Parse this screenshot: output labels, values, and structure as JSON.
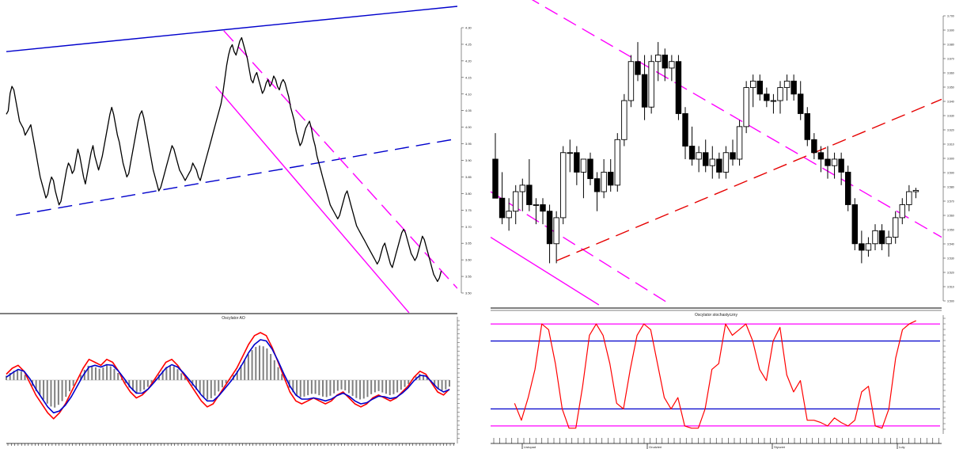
{
  "chart_data": [
    {
      "id": "left_price",
      "type": "line",
      "title": "",
      "y_ticks": [
        "4.30",
        "4.25",
        "4.20",
        "4.15",
        "4.10",
        "4.05",
        "4.00",
        "3.95",
        "3.90",
        "3.85",
        "3.80",
        "3.75",
        "3.70",
        "3.65",
        "3.60",
        "3.55",
        "3.50"
      ],
      "ylim": [
        3.45,
        4.33
      ],
      "xlim": [
        0,
        280
      ],
      "series": [
        {
          "color": "#000000",
          "values": [
            4.02,
            4.03,
            4.08,
            4.1,
            4.09,
            4.06,
            4.03,
            4.0,
            3.99,
            3.98,
            3.96,
            3.97,
            3.98,
            3.99,
            3.96,
            3.93,
            3.9,
            3.87,
            3.84,
            3.82,
            3.8,
            3.78,
            3.79,
            3.82,
            3.84,
            3.83,
            3.8,
            3.78,
            3.76,
            3.77,
            3.8,
            3.83,
            3.86,
            3.88,
            3.87,
            3.85,
            3.86,
            3.89,
            3.92,
            3.9,
            3.87,
            3.84,
            3.82,
            3.85,
            3.88,
            3.91,
            3.93,
            3.9,
            3.88,
            3.86,
            3.88,
            3.9,
            3.93,
            3.96,
            3.99,
            4.02,
            4.04,
            4.02,
            3.99,
            3.96,
            3.94,
            3.91,
            3.88,
            3.86,
            3.84,
            3.85,
            3.88,
            3.91,
            3.94,
            3.97,
            4.0,
            4.02,
            4.03,
            4.01,
            3.98,
            3.95,
            3.92,
            3.89,
            3.86,
            3.84,
            3.82,
            3.8,
            3.81,
            3.83,
            3.85,
            3.87,
            3.89,
            3.91,
            3.93,
            3.92,
            3.9,
            3.88,
            3.86,
            3.85,
            3.84,
            3.83,
            3.84,
            3.85,
            3.86,
            3.88,
            3.87,
            3.86,
            3.84,
            3.83,
            3.85,
            3.87,
            3.89,
            3.91,
            3.93,
            3.95,
            3.97,
            3.99,
            4.01,
            4.03,
            4.05,
            4.08,
            4.12,
            4.16,
            4.19,
            4.21,
            4.22,
            4.2,
            4.19,
            4.21,
            4.23,
            4.24,
            4.22,
            4.2,
            4.18,
            4.15,
            4.12,
            4.11,
            4.13,
            4.14,
            4.12,
            4.1,
            4.08,
            4.09,
            4.11,
            4.12,
            4.1,
            4.11,
            4.13,
            4.12,
            4.1,
            4.09,
            4.11,
            4.12,
            4.11,
            4.09,
            4.07,
            4.04,
            4.02,
            4.0,
            3.97,
            3.95,
            3.93,
            3.94,
            3.96,
            3.98,
            3.99,
            4.0,
            3.98,
            3.95,
            3.93,
            3.9,
            3.88,
            3.86,
            3.84,
            3.82,
            3.8,
            3.78,
            3.76,
            3.75,
            3.74,
            3.73,
            3.72,
            3.73,
            3.75,
            3.77,
            3.79,
            3.8,
            3.78,
            3.76,
            3.74,
            3.72,
            3.7,
            3.69,
            3.68,
            3.67,
            3.66,
            3.65,
            3.64,
            3.63,
            3.62,
            3.61,
            3.6,
            3.59,
            3.6,
            3.62,
            3.64,
            3.65,
            3.63,
            3.61,
            3.59,
            3.58,
            3.6,
            3.62,
            3.64,
            3.66,
            3.68,
            3.69,
            3.68,
            3.66,
            3.64,
            3.62,
            3.61,
            3.6,
            3.61,
            3.63,
            3.65,
            3.67,
            3.66,
            3.64,
            3.62,
            3.6,
            3.58,
            3.56,
            3.55,
            3.54,
            3.55,
            3.57
          ]
        }
      ],
      "trendlines": [
        {
          "color": "#0000cc",
          "style": "solid",
          "from": [
            0,
            4.2
          ],
          "to": [
            280,
            4.33
          ]
        },
        {
          "color": "#0000cc",
          "style": "dashed",
          "from": [
            6,
            3.73
          ],
          "to": [
            280,
            3.95
          ]
        },
        {
          "color": "#ff00ff",
          "style": "dashed",
          "from": [
            135,
            4.26
          ],
          "to": [
            280,
            3.52
          ]
        },
        {
          "color": "#ff00ff",
          "style": "solid",
          "from": [
            130,
            4.1
          ],
          "to": [
            250,
            3.45
          ]
        }
      ]
    },
    {
      "id": "left_osc",
      "type": "line",
      "title": "Oscylator AO",
      "ylim": [
        -1,
        1
      ],
      "xlim": [
        0,
        280
      ],
      "series": [
        {
          "color": "#ff0000",
          "values": [
            0.1,
            0.2,
            0.25,
            0.15,
            -0.05,
            -0.25,
            -0.4,
            -0.55,
            -0.65,
            -0.55,
            -0.4,
            -0.2,
            0.0,
            0.2,
            0.35,
            0.3,
            0.25,
            0.35,
            0.3,
            0.15,
            -0.05,
            -0.2,
            -0.3,
            -0.25,
            -0.15,
            0.0,
            0.15,
            0.3,
            0.35,
            0.25,
            0.1,
            -0.05,
            -0.2,
            -0.35,
            -0.45,
            -0.4,
            -0.25,
            -0.1,
            0.05,
            0.2,
            0.4,
            0.6,
            0.75,
            0.8,
            0.75,
            0.55,
            0.3,
            0.05,
            -0.2,
            -0.35,
            -0.4,
            -0.35,
            -0.3,
            -0.35,
            -0.4,
            -0.35,
            -0.25,
            -0.2,
            -0.3,
            -0.4,
            -0.45,
            -0.4,
            -0.3,
            -0.25,
            -0.3,
            -0.35,
            -0.3,
            -0.2,
            -0.1,
            0.05,
            0.15,
            0.1,
            -0.05,
            -0.2,
            -0.25,
            -0.15
          ]
        },
        {
          "color": "#0000cc",
          "values": [
            0.05,
            0.12,
            0.18,
            0.15,
            0.02,
            -0.15,
            -0.3,
            -0.45,
            -0.55,
            -0.52,
            -0.42,
            -0.28,
            -0.1,
            0.08,
            0.22,
            0.25,
            0.22,
            0.26,
            0.25,
            0.15,
            0.02,
            -0.12,
            -0.22,
            -0.22,
            -0.15,
            -0.04,
            0.08,
            0.2,
            0.26,
            0.22,
            0.12,
            0.0,
            -0.12,
            -0.25,
            -0.35,
            -0.35,
            -0.26,
            -0.14,
            -0.02,
            0.12,
            0.28,
            0.46,
            0.6,
            0.68,
            0.66,
            0.52,
            0.32,
            0.1,
            -0.1,
            -0.25,
            -0.32,
            -0.32,
            -0.3,
            -0.32,
            -0.35,
            -0.32,
            -0.26,
            -0.22,
            -0.27,
            -0.35,
            -0.4,
            -0.38,
            -0.32,
            -0.27,
            -0.28,
            -0.31,
            -0.29,
            -0.22,
            -0.13,
            -0.01,
            0.08,
            0.07,
            -0.03,
            -0.14,
            -0.2,
            -0.16
          ]
        }
      ]
    },
    {
      "id": "right_candles",
      "type": "candlestick",
      "title": "",
      "y_ticks": [
        "3.700",
        "3.690",
        "3.680",
        "3.670",
        "3.660",
        "3.650",
        "3.640",
        "3.630",
        "3.620",
        "3.610",
        "3.600",
        "3.590",
        "3.580",
        "3.570",
        "3.560",
        "3.550",
        "3.540",
        "3.530",
        "3.520",
        "3.510",
        "3.500"
      ],
      "ylim": [
        3.488,
        3.715
      ],
      "xlim": [
        0,
        75
      ],
      "ohlc": [
        [
          3.6,
          3.62,
          3.57,
          3.57
        ],
        [
          3.57,
          3.59,
          3.55,
          3.555
        ],
        [
          3.555,
          3.57,
          3.545,
          3.56
        ],
        [
          3.56,
          3.58,
          3.55,
          3.575
        ],
        [
          3.575,
          3.585,
          3.56,
          3.58
        ],
        [
          3.58,
          3.6,
          3.56,
          3.565
        ],
        [
          3.565,
          3.57,
          3.55,
          3.565
        ],
        [
          3.565,
          3.57,
          3.55,
          3.56
        ],
        [
          3.56,
          3.565,
          3.52,
          3.535
        ],
        [
          3.535,
          3.56,
          3.52,
          3.555
        ],
        [
          3.555,
          3.61,
          3.55,
          3.605
        ],
        [
          3.605,
          3.615,
          3.59,
          3.605
        ],
        [
          3.605,
          3.61,
          3.58,
          3.59
        ],
        [
          3.59,
          3.6,
          3.57,
          3.6
        ],
        [
          3.6,
          3.605,
          3.58,
          3.585
        ],
        [
          3.585,
          3.59,
          3.56,
          3.575
        ],
        [
          3.575,
          3.6,
          3.57,
          3.59
        ],
        [
          3.59,
          3.6,
          3.575,
          3.58
        ],
        [
          3.58,
          3.62,
          3.575,
          3.615
        ],
        [
          3.615,
          3.65,
          3.61,
          3.645
        ],
        [
          3.645,
          3.68,
          3.64,
          3.675
        ],
        [
          3.675,
          3.69,
          3.66,
          3.665
        ],
        [
          3.665,
          3.68,
          3.63,
          3.64
        ],
        [
          3.64,
          3.68,
          3.635,
          3.675
        ],
        [
          3.675,
          3.69,
          3.66,
          3.68
        ],
        [
          3.68,
          3.685,
          3.66,
          3.67
        ],
        [
          3.67,
          3.68,
          3.66,
          3.675
        ],
        [
          3.675,
          3.68,
          3.63,
          3.635
        ],
        [
          3.635,
          3.64,
          3.6,
          3.61
        ],
        [
          3.61,
          3.625,
          3.595,
          3.6
        ],
        [
          3.6,
          3.61,
          3.59,
          3.605
        ],
        [
          3.605,
          3.615,
          3.59,
          3.595
        ],
        [
          3.595,
          3.61,
          3.585,
          3.6
        ],
        [
          3.6,
          3.605,
          3.585,
          3.59
        ],
        [
          3.59,
          3.61,
          3.585,
          3.605
        ],
        [
          3.605,
          3.615,
          3.595,
          3.6
        ],
        [
          3.6,
          3.63,
          3.595,
          3.625
        ],
        [
          3.625,
          3.66,
          3.62,
          3.655
        ],
        [
          3.655,
          3.665,
          3.64,
          3.66
        ],
        [
          3.66,
          3.665,
          3.645,
          3.65
        ],
        [
          3.65,
          3.655,
          3.64,
          3.645
        ],
        [
          3.645,
          3.65,
          3.635,
          3.645
        ],
        [
          3.645,
          3.66,
          3.635,
          3.655
        ],
        [
          3.655,
          3.665,
          3.645,
          3.66
        ],
        [
          3.66,
          3.665,
          3.645,
          3.65
        ],
        [
          3.65,
          3.66,
          3.63,
          3.635
        ],
        [
          3.635,
          3.64,
          3.61,
          3.615
        ],
        [
          3.615,
          3.62,
          3.6,
          3.605
        ],
        [
          3.605,
          3.61,
          3.59,
          3.6
        ],
        [
          3.6,
          3.61,
          3.585,
          3.595
        ],
        [
          3.595,
          3.605,
          3.585,
          3.6
        ],
        [
          3.6,
          3.605,
          3.58,
          3.59
        ],
        [
          3.59,
          3.595,
          3.56,
          3.565
        ],
        [
          3.565,
          3.57,
          3.53,
          3.535
        ],
        [
          3.535,
          3.545,
          3.52,
          3.53
        ],
        [
          3.53,
          3.54,
          3.525,
          3.535
        ],
        [
          3.535,
          3.55,
          3.53,
          3.545
        ],
        [
          3.545,
          3.55,
          3.53,
          3.535
        ],
        [
          3.535,
          3.545,
          3.525,
          3.54
        ],
        [
          3.54,
          3.56,
          3.535,
          3.555
        ],
        [
          3.555,
          3.57,
          3.55,
          3.565
        ],
        [
          3.565,
          3.58,
          3.56,
          3.575
        ],
        [
          3.575,
          3.578,
          3.57,
          3.576
        ]
      ],
      "trendlines": [
        {
          "color": "#ff00ff",
          "style": "dashed",
          "from": [
            6,
            3.725
          ],
          "to": [
            75,
            3.54
          ]
        },
        {
          "color": "#ff00ff",
          "style": "solid",
          "from": [
            0,
            3.54
          ],
          "to": [
            18,
            3.488
          ]
        },
        {
          "color": "#ff00ff",
          "style": "dashed",
          "from": [
            0,
            3.575
          ],
          "to": [
            30,
            3.488
          ]
        },
        {
          "color": "#e60000",
          "style": "dashed",
          "from": [
            11,
            3.522
          ],
          "to": [
            75,
            3.646
          ]
        }
      ]
    },
    {
      "id": "right_stoch",
      "type": "line",
      "title": "Oscylator stochastyczny",
      "ylim": [
        0,
        100
      ],
      "xlim": [
        0,
        75
      ],
      "levels": [
        {
          "value": 95,
          "color": "#ff00ff"
        },
        {
          "value": 80,
          "color": "#0000cc"
        },
        {
          "value": 20,
          "color": "#0000cc"
        },
        {
          "value": 5,
          "color": "#ff00ff"
        }
      ],
      "series": [
        {
          "color": "#ff0000",
          "values": [
            25,
            10,
            30,
            55,
            95,
            90,
            60,
            20,
            3,
            3,
            40,
            85,
            95,
            85,
            60,
            25,
            20,
            55,
            85,
            95,
            90,
            60,
            30,
            20,
            30,
            5,
            3,
            3,
            20,
            55,
            60,
            95,
            85,
            90,
            95,
            80,
            55,
            45,
            80,
            92,
            50,
            35,
            45,
            10,
            10,
            8,
            5,
            12,
            8,
            5,
            10,
            35,
            40,
            5,
            3,
            20,
            65,
            90,
            95,
            98
          ]
        }
      ],
      "month_labels": [
        "Listopad",
        "Grudzień",
        "Styczeń",
        "Luty"
      ]
    }
  ]
}
